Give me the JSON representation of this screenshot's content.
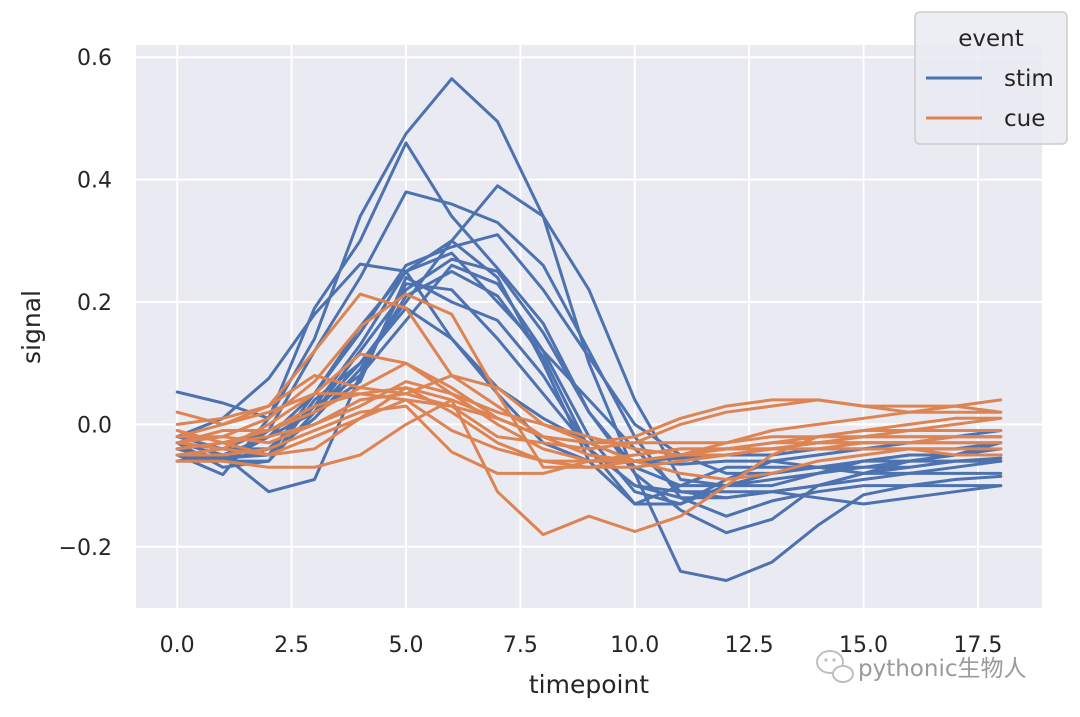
{
  "chart_data": {
    "type": "line",
    "xlabel": "timepoint",
    "ylabel": "signal",
    "xlim": [
      -0.9,
      18.9
    ],
    "ylim": [
      -0.3,
      0.62
    ],
    "xticks": [
      0,
      2.5,
      5,
      7.5,
      10,
      12.5,
      15,
      17.5
    ],
    "xtick_labels": [
      "0.0",
      "2.5",
      "5.0",
      "7.5",
      "10.0",
      "12.5",
      "15.0",
      "17.5"
    ],
    "yticks": [
      -0.2,
      0.0,
      0.2,
      0.4,
      0.6
    ],
    "ytick_labels": [
      "−0.2",
      "0.0",
      "0.2",
      "0.4",
      "0.6"
    ],
    "grid": true,
    "legend": {
      "title": "event",
      "placement": "top-right",
      "entries": [
        "stim",
        "cue"
      ]
    },
    "colors": {
      "stim": "#4c72b0",
      "cue": "#dd8452",
      "background": "#eaeaf2",
      "grid": "#ffffff"
    },
    "x": [
      0,
      1,
      2,
      3,
      4,
      5,
      6,
      7,
      8,
      9,
      10,
      11,
      12,
      13,
      14,
      15,
      16,
      17,
      18
    ],
    "series": [
      {
        "group": "stim",
        "values": [
          0.053,
          0.035,
          0.01,
          0.19,
          0.3,
          0.46,
          0.34,
          0.255,
          0.165,
          0.02,
          -0.08,
          -0.24,
          -0.255,
          -0.225,
          -0.165,
          -0.115,
          -0.1,
          -0.09,
          -0.085
        ]
      },
      {
        "group": "stim",
        "values": [
          -0.05,
          -0.082,
          0.01,
          0.14,
          0.34,
          0.475,
          0.565,
          0.495,
          0.34,
          0.1,
          -0.08,
          -0.14,
          -0.177,
          -0.155,
          -0.1,
          -0.08,
          -0.07,
          -0.06,
          -0.055
        ]
      },
      {
        "group": "stim",
        "values": [
          -0.03,
          -0.04,
          -0.01,
          0.12,
          0.24,
          0.38,
          0.36,
          0.33,
          0.26,
          0.12,
          -0.02,
          -0.12,
          -0.15,
          -0.125,
          -0.11,
          -0.1,
          -0.1,
          -0.1,
          -0.1
        ]
      },
      {
        "group": "stim",
        "values": [
          -0.04,
          -0.055,
          -0.05,
          0.05,
          0.16,
          0.25,
          0.3,
          0.39,
          0.34,
          0.22,
          0.04,
          -0.09,
          -0.1,
          -0.1,
          -0.08,
          -0.06,
          -0.05,
          -0.05,
          -0.03
        ]
      },
      {
        "group": "stim",
        "values": [
          -0.02,
          0.01,
          0.075,
          0.18,
          0.262,
          0.25,
          0.14,
          0.06,
          0.01,
          -0.03,
          -0.06,
          -0.065,
          -0.06,
          -0.06,
          -0.07,
          -0.08,
          -0.08,
          -0.08,
          -0.08
        ]
      },
      {
        "group": "stim",
        "values": [
          -0.03,
          -0.05,
          -0.02,
          0.05,
          0.15,
          0.26,
          0.29,
          0.31,
          0.22,
          0.11,
          0.0,
          -0.05,
          -0.08,
          -0.08,
          -0.07,
          -0.06,
          -0.06,
          -0.05,
          -0.05
        ]
      },
      {
        "group": "stim",
        "values": [
          -0.05,
          -0.06,
          -0.04,
          0.03,
          0.13,
          0.25,
          0.28,
          0.2,
          0.12,
          0.04,
          -0.04,
          -0.11,
          -0.12,
          -0.11,
          -0.1,
          -0.09,
          -0.08,
          -0.07,
          -0.06
        ]
      },
      {
        "group": "stim",
        "values": [
          -0.03,
          -0.07,
          -0.06,
          0.02,
          0.12,
          0.22,
          0.27,
          0.25,
          0.15,
          0.02,
          -0.07,
          -0.1,
          -0.1,
          -0.09,
          -0.08,
          -0.07,
          -0.06,
          -0.06,
          -0.06
        ]
      },
      {
        "group": "stim",
        "values": [
          -0.05,
          -0.06,
          -0.06,
          0.04,
          0.1,
          0.2,
          0.3,
          0.24,
          0.1,
          -0.06,
          -0.13,
          -0.1,
          -0.07,
          -0.07,
          -0.07,
          -0.06,
          -0.05,
          -0.05,
          -0.04
        ]
      },
      {
        "group": "stim",
        "values": [
          -0.06,
          -0.05,
          -0.11,
          -0.09,
          0.08,
          0.23,
          0.22,
          0.14,
          0.05,
          -0.04,
          -0.1,
          -0.11,
          -0.11,
          -0.11,
          -0.12,
          -0.13,
          -0.12,
          -0.11,
          -0.1
        ]
      },
      {
        "group": "stim",
        "values": [
          -0.02,
          -0.04,
          -0.04,
          0.03,
          0.08,
          0.17,
          0.26,
          0.23,
          0.12,
          -0.02,
          -0.11,
          -0.13,
          -0.1,
          -0.08,
          -0.07,
          -0.07,
          -0.07,
          -0.06,
          -0.06
        ]
      },
      {
        "group": "stim",
        "values": [
          -0.06,
          -0.06,
          -0.02,
          0.02,
          0.07,
          0.24,
          0.2,
          0.17,
          0.08,
          -0.04,
          -0.1,
          -0.12,
          -0.12,
          -0.11,
          -0.1,
          -0.08,
          -0.06,
          -0.05,
          -0.05
        ]
      },
      {
        "group": "stim",
        "values": [
          -0.04,
          -0.06,
          -0.01,
          0.02,
          0.1,
          0.19,
          0.14,
          0.05,
          -0.03,
          -0.06,
          -0.06,
          -0.055,
          -0.05,
          -0.05,
          -0.04,
          -0.04,
          -0.04,
          -0.04,
          -0.03
        ]
      },
      {
        "group": "stim",
        "values": [
          -0.03,
          -0.04,
          -0.05,
          0.01,
          0.09,
          0.21,
          0.25,
          0.21,
          0.11,
          -0.04,
          -0.13,
          -0.13,
          -0.09,
          -0.06,
          -0.05,
          -0.04,
          -0.03,
          -0.02,
          -0.01
        ]
      },
      {
        "group": "cue",
        "values": [
          0.02,
          0.0,
          0.03,
          0.12,
          0.213,
          0.19,
          0.08,
          0.06,
          0.0,
          -0.03,
          -0.06,
          -0.08,
          -0.09,
          -0.08,
          -0.06,
          -0.05,
          -0.04,
          -0.04,
          -0.04
        ]
      },
      {
        "group": "cue",
        "values": [
          -0.03,
          -0.02,
          0.01,
          0.07,
          0.16,
          0.213,
          0.18,
          0.05,
          -0.07,
          -0.07,
          -0.06,
          -0.05,
          -0.05,
          -0.04,
          -0.04,
          -0.03,
          -0.03,
          -0.03,
          -0.03
        ]
      },
      {
        "group": "cue",
        "values": [
          -0.03,
          -0.04,
          0.0,
          0.05,
          0.115,
          0.1,
          0.06,
          0.01,
          -0.02,
          -0.05,
          -0.06,
          -0.05,
          -0.03,
          -0.01,
          0.0,
          0.01,
          0.02,
          0.02,
          0.02
        ]
      },
      {
        "group": "cue",
        "values": [
          -0.06,
          -0.06,
          -0.07,
          -0.07,
          -0.05,
          0.0,
          0.04,
          -0.11,
          -0.18,
          -0.15,
          -0.175,
          -0.15,
          -0.1,
          -0.05,
          -0.02,
          -0.01,
          0.0,
          0.01,
          0.01
        ]
      },
      {
        "group": "cue",
        "values": [
          -0.01,
          -0.03,
          -0.05,
          -0.04,
          0.01,
          0.06,
          0.02,
          -0.03,
          -0.06,
          -0.06,
          -0.05,
          -0.04,
          -0.04,
          -0.03,
          -0.03,
          -0.02,
          -0.02,
          -0.02,
          -0.02
        ]
      },
      {
        "group": "cue",
        "values": [
          -0.04,
          -0.03,
          -0.01,
          0.02,
          0.06,
          0.1,
          0.05,
          0.0,
          -0.04,
          -0.06,
          -0.06,
          -0.05,
          -0.04,
          -0.04,
          -0.04,
          -0.04,
          -0.04,
          -0.05,
          -0.05
        ]
      },
      {
        "group": "cue",
        "values": [
          -0.02,
          0.0,
          0.02,
          0.05,
          0.05,
          0.04,
          0.03,
          -0.02,
          -0.03,
          -0.04,
          -0.03,
          0.0,
          0.02,
          0.03,
          0.04,
          0.03,
          0.03,
          0.03,
          0.02
        ]
      },
      {
        "group": "cue",
        "values": [
          0.0,
          0.01,
          0.03,
          0.08,
          0.06,
          0.05,
          0.03,
          0.01,
          -0.02,
          -0.03,
          -0.03,
          -0.03,
          -0.03,
          -0.02,
          -0.02,
          -0.02,
          -0.02,
          -0.02,
          -0.02
        ]
      },
      {
        "group": "cue",
        "values": [
          -0.05,
          -0.04,
          -0.05,
          -0.02,
          0.01,
          0.04,
          -0.01,
          -0.04,
          -0.06,
          -0.07,
          -0.07,
          -0.06,
          -0.05,
          -0.04,
          -0.03,
          -0.02,
          -0.01,
          0.0,
          0.01
        ]
      },
      {
        "group": "cue",
        "values": [
          -0.03,
          -0.01,
          -0.01,
          0.03,
          0.05,
          0.06,
          0.04,
          0.01,
          -0.02,
          -0.03,
          -0.02,
          0.01,
          0.03,
          0.04,
          0.04,
          0.03,
          0.02,
          0.03,
          0.04
        ]
      },
      {
        "group": "cue",
        "values": [
          -0.04,
          -0.03,
          -0.02,
          0.0,
          0.04,
          0.05,
          0.08,
          0.03,
          -0.02,
          -0.05,
          -0.06,
          -0.05,
          -0.04,
          -0.04,
          -0.03,
          -0.03,
          -0.03,
          -0.03,
          -0.03
        ]
      },
      {
        "group": "cue",
        "values": [
          -0.02,
          -0.02,
          -0.03,
          0.0,
          0.03,
          0.07,
          0.05,
          0.02,
          0.0,
          -0.02,
          -0.04,
          -0.05,
          -0.05,
          -0.04,
          -0.03,
          -0.03,
          -0.03,
          -0.02,
          -0.02
        ]
      },
      {
        "group": "cue",
        "values": [
          -0.05,
          -0.05,
          -0.04,
          -0.01,
          0.02,
          0.03,
          -0.045,
          -0.08,
          -0.08,
          -0.06,
          -0.05,
          -0.04,
          -0.04,
          -0.03,
          -0.02,
          -0.01,
          -0.01,
          -0.01,
          -0.01
        ]
      }
    ]
  },
  "watermark": {
    "text": "pythonic生物人",
    "icon": "wechat-icon"
  }
}
